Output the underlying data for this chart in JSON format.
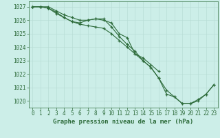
{
  "title": "Graphe pression niveau de la mer (hPa)",
  "background_color": "#cceee8",
  "grid_color": "#b8ddd6",
  "line_color": "#2d6b3a",
  "x": [
    0,
    1,
    2,
    3,
    4,
    5,
    6,
    7,
    8,
    9,
    10,
    11,
    12,
    13,
    14,
    15,
    16,
    17,
    18,
    19,
    20,
    21,
    22,
    23
  ],
  "line1": [
    1027.0,
    1027.0,
    1026.9,
    1026.6,
    1026.2,
    1025.9,
    1025.8,
    1026.0,
    1026.1,
    1026.0,
    1025.8,
    1025.0,
    1024.7,
    1023.5,
    1023.2,
    1022.7,
    1022.2,
    null,
    null,
    null,
    null,
    null,
    null,
    null
  ],
  "line2": [
    1027.0,
    1027.0,
    1026.9,
    1026.5,
    1026.2,
    1025.9,
    1025.7,
    1025.6,
    1025.5,
    1025.4,
    1025.0,
    1024.5,
    1024.0,
    1023.5,
    1023.0,
    1022.5,
    1021.7,
    1020.8,
    1020.3,
    1019.8,
    1019.8,
    1020.1,
    1020.5,
    1021.2
  ],
  "line3": [
    1027.0,
    1027.0,
    1027.0,
    1026.7,
    1026.4,
    1026.2,
    1026.0,
    1026.0,
    1026.1,
    1026.1,
    1025.5,
    1024.8,
    1024.2,
    1023.7,
    1023.0,
    1022.5,
    1021.7,
    1020.5,
    1020.3,
    1019.8,
    1019.8,
    1020.0,
    1020.5,
    1021.2
  ],
  "ylim": [
    1019.5,
    1027.4
  ],
  "yticks": [
    1020,
    1021,
    1022,
    1023,
    1024,
    1025,
    1026,
    1027
  ],
  "xlim": [
    -0.5,
    23.5
  ],
  "xticks": [
    0,
    1,
    2,
    3,
    4,
    5,
    6,
    7,
    8,
    9,
    10,
    11,
    12,
    13,
    14,
    15,
    16,
    17,
    18,
    19,
    20,
    21,
    22,
    23
  ],
  "xlabel_fontsize": 6.5,
  "tick_fontsize": 5.5
}
